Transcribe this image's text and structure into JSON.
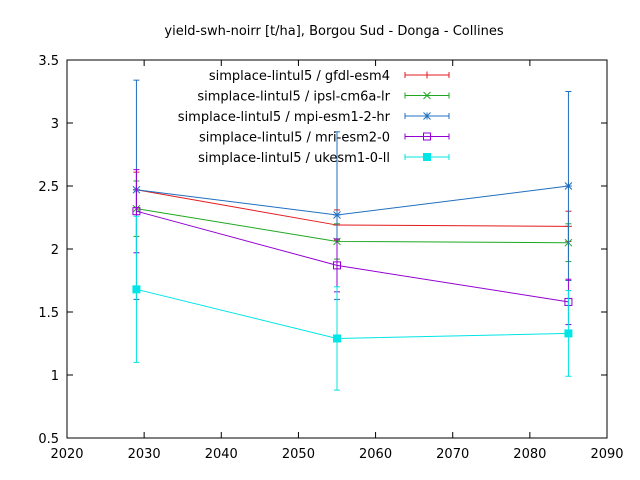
{
  "chart_data": {
    "type": "line",
    "title": "yield-swh-noirr [t/ha], Borgou Sud - Donga - Collines",
    "xlabel": "",
    "ylabel": "",
    "xlim": [
      2020,
      2090
    ],
    "ylim": [
      0.5,
      3.5
    ],
    "xticks": [
      2020,
      2030,
      2040,
      2050,
      2060,
      2070,
      2080,
      2090
    ],
    "yticks": [
      0.5,
      1,
      1.5,
      2,
      2.5,
      3,
      3.5
    ],
    "xtick_labels": [
      "2020",
      "2030",
      "2040",
      "2050",
      "2060",
      "2070",
      "2080",
      "2090"
    ],
    "ytick_labels": [
      "0.5",
      "1",
      "1.5",
      "2",
      "2.5",
      "3",
      "3.5"
    ],
    "grid": false,
    "legend_position": "top-right",
    "x": [
      2029,
      2055,
      2085
    ],
    "series": [
      {
        "name": "simplace-lintul5 / gfdl-esm4",
        "color": "#e41a1c",
        "marker": "plus",
        "values": [
          2.47,
          2.19,
          2.18
        ],
        "err_low": [
          2.33,
          2.07,
          2.06
        ],
        "err_high": [
          2.61,
          2.31,
          2.3
        ]
      },
      {
        "name": "simplace-lintul5 / ipsl-cm6a-lr",
        "color": "#1fa81f",
        "marker": "cross",
        "values": [
          2.32,
          2.06,
          2.05
        ],
        "err_low": [
          2.1,
          1.92,
          1.9
        ],
        "err_high": [
          2.54,
          2.2,
          2.2
        ]
      },
      {
        "name": "simplace-lintul5 / mpi-esm1-2-hr",
        "color": "#1f6fbf",
        "marker": "star",
        "values": [
          2.47,
          2.27,
          2.5
        ],
        "err_low": [
          1.6,
          1.6,
          1.75
        ],
        "err_high": [
          3.34,
          2.93,
          3.25
        ]
      },
      {
        "name": "simplace-lintul5 / mri-esm2-0",
        "color": "#9400d3",
        "marker": "square-open",
        "values": [
          2.3,
          1.87,
          1.58
        ],
        "err_low": [
          1.97,
          1.66,
          1.4
        ],
        "err_high": [
          2.63,
          2.08,
          1.76
        ]
      },
      {
        "name": "simplace-lintul5 / ukesm1-0-ll",
        "color": "#00e5e5",
        "marker": "square-filled",
        "values": [
          1.68,
          1.29,
          1.33
        ],
        "err_low": [
          1.1,
          0.88,
          0.99
        ],
        "err_high": [
          2.26,
          1.7,
          1.67
        ]
      }
    ]
  }
}
